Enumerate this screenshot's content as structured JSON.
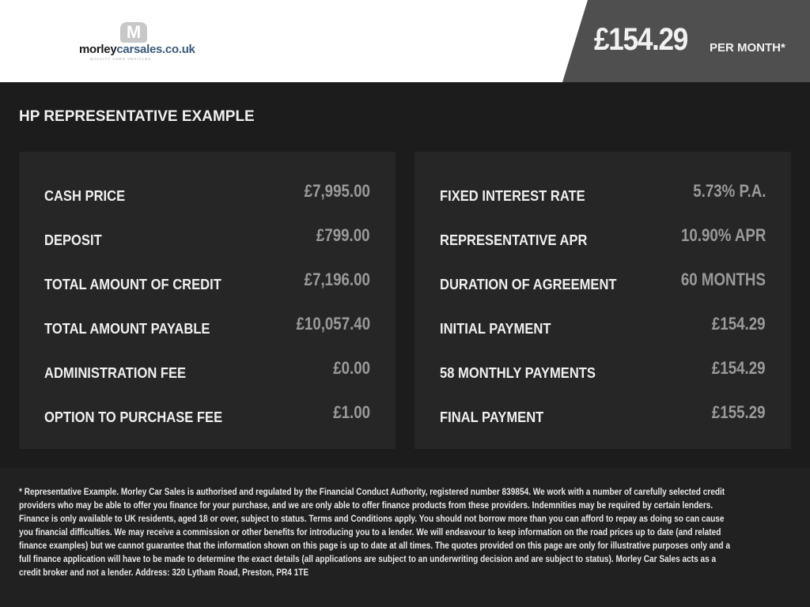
{
  "header": {
    "logo": {
      "brand_main": "morley",
      "brand_accent": "carsales.co.uk",
      "tagline": "QUALITY USED VEHICLES",
      "badge": "M"
    },
    "monthly_price": "£154.29",
    "per_month_label": "PER MONTH*"
  },
  "title": "HP REPRESENTATIVE EXAMPLE",
  "left_panel": [
    {
      "label": "CASH PRICE",
      "value": "£7,995.00"
    },
    {
      "label": "DEPOSIT",
      "value": "£799.00"
    },
    {
      "label": "TOTAL AMOUNT OF CREDIT",
      "value": "£7,196.00"
    },
    {
      "label": "TOTAL AMOUNT PAYABLE",
      "value": "£10,057.40"
    },
    {
      "label": "ADMINISTRATION FEE",
      "value": "£0.00"
    },
    {
      "label": "OPTION TO PURCHASE FEE",
      "value": "£1.00"
    }
  ],
  "right_panel": [
    {
      "label": "FIXED INTEREST RATE",
      "value": "5.73% P.A."
    },
    {
      "label": "REPRESENTATIVE APR",
      "value": "10.90% APR"
    },
    {
      "label": "DURATION OF AGREEMENT",
      "value": "60 MONTHS"
    },
    {
      "label": "INITIAL PAYMENT",
      "value": "£154.29"
    },
    {
      "label": "58 MONTHLY PAYMENTS",
      "value": "£154.29"
    },
    {
      "label": "FINAL PAYMENT",
      "value": "£155.29"
    }
  ],
  "disclaimer": "* Representative Example. Morley Car Sales is authorised and regulated by the Financial Conduct Authority, registered number 839854. We work with a number of carefully selected credit providers who may be able to offer you finance for your purchase, and we are only able to offer finance products from these providers. Indemnities may be required by certain lenders. Finance is only available to UK residents, aged 18 or over, subject to status. Terms and Conditions apply. You should not borrow more than you can afford to repay as doing so can cause you financial difficulties. We may receive a commission or other benefits for introducing you to a lender. We will endeavour to keep information on the road prices up to date (and related finance examples) but we cannot guarantee that the information shown on this page is up to date at all times. The quotes provided on this page are only for illustrative purposes only and a full finance application will have to be made to determine the exact details (all applications are subject to an underwriting decision and are subject to status). Morley Car Sales acts as a credit broker and not a lender. Address: 320 Lytham Road, Preston, PR4 1TE",
  "colors": {
    "background": "#1c1c1c",
    "panel": "#262626",
    "price_box": "#4f4f4f",
    "value_text": "#9a9a9a"
  }
}
